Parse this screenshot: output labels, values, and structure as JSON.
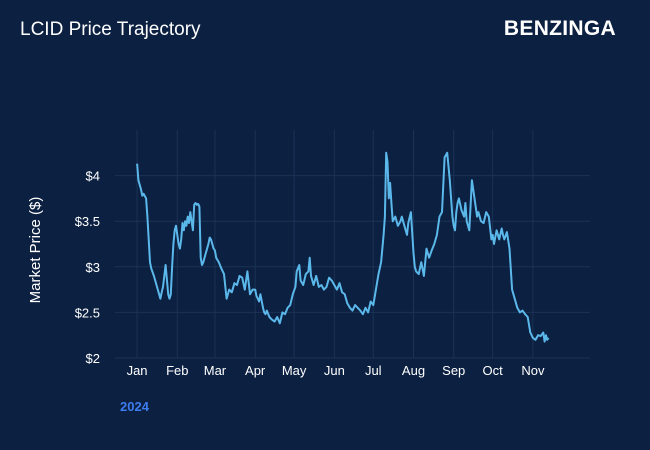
{
  "header": {
    "title": "LCID Price Trajectory",
    "brand": "BENZINGA"
  },
  "colors": {
    "background": "#0c2041",
    "line": "#5bb8ea",
    "grid": "#1c3256",
    "year_label": "#3d7cf0"
  },
  "chart_data": {
    "type": "line",
    "ylabel": "Market Price ($)",
    "year_label": "2024",
    "ylim": [
      2.0,
      4.5
    ],
    "yticks": [
      {
        "value": 2.0,
        "label": "$2"
      },
      {
        "value": 2.5,
        "label": "$2.5"
      },
      {
        "value": 3.0,
        "label": "$3"
      },
      {
        "value": 3.5,
        "label": "$3.5"
      },
      {
        "value": 4.0,
        "label": "$4"
      }
    ],
    "xticks": [
      {
        "label": "Jan",
        "date": "2024-01-01"
      },
      {
        "label": "Feb",
        "date": "2024-02-01"
      },
      {
        "label": "Mar",
        "date": "2024-03-01"
      },
      {
        "label": "Apr",
        "date": "2024-04-01"
      },
      {
        "label": "May",
        "date": "2024-05-01"
      },
      {
        "label": "Jun",
        "date": "2024-06-01"
      },
      {
        "label": "Jul",
        "date": "2024-07-01"
      },
      {
        "label": "Aug",
        "date": "2024-08-01"
      },
      {
        "label": "Sep",
        "date": "2024-09-01"
      },
      {
        "label": "Oct",
        "date": "2024-10-01"
      },
      {
        "label": "Nov",
        "date": "2024-11-01"
      }
    ],
    "x_range": [
      "2023-12-15",
      "2024-12-15"
    ],
    "grid": true,
    "series": [
      {
        "x": [
          "2024-01-01",
          "2024-01-02",
          "2024-01-04",
          "2024-01-05",
          "2024-01-06",
          "2024-01-08",
          "2024-01-09",
          "2024-01-10",
          "2024-01-11",
          "2024-01-12",
          "2024-01-14",
          "2024-01-15",
          "2024-01-17",
          "2024-01-19",
          "2024-01-20",
          "2024-01-21",
          "2024-01-22",
          "2024-01-23",
          "2024-01-25",
          "2024-01-26",
          "2024-01-27",
          "2024-01-28",
          "2024-01-29",
          "2024-01-30",
          "2024-01-31",
          "2024-02-01",
          "2024-02-02",
          "2024-02-03",
          "2024-02-04",
          "2024-02-05",
          "2024-02-06",
          "2024-02-07",
          "2024-02-08",
          "2024-02-09",
          "2024-02-10",
          "2024-02-11",
          "2024-02-12",
          "2024-02-13",
          "2024-02-14",
          "2024-02-15",
          "2024-02-16",
          "2024-02-17",
          "2024-02-18",
          "2024-02-19",
          "2024-02-20",
          "2024-02-21",
          "2024-02-23",
          "2024-02-25",
          "2024-02-26",
          "2024-02-27",
          "2024-02-28",
          "2024-02-29",
          "2024-03-01",
          "2024-03-02",
          "2024-03-04",
          "2024-03-06",
          "2024-03-08",
          "2024-03-10",
          "2024-03-12",
          "2024-03-14",
          "2024-03-16",
          "2024-03-18",
          "2024-03-20",
          "2024-03-22",
          "2024-03-24",
          "2024-03-26",
          "2024-03-28",
          "2024-03-30",
          "2024-04-01",
          "2024-04-02",
          "2024-04-04",
          "2024-04-05",
          "2024-04-07",
          "2024-04-08",
          "2024-04-09",
          "2024-04-10",
          "2024-04-12",
          "2024-04-14",
          "2024-04-16",
          "2024-04-18",
          "2024-04-20",
          "2024-04-22",
          "2024-04-24",
          "2024-04-26",
          "2024-04-28",
          "2024-04-30",
          "2024-05-02",
          "2024-05-03",
          "2024-05-05",
          "2024-05-06",
          "2024-05-08",
          "2024-05-10",
          "2024-05-12",
          "2024-05-13",
          "2024-05-14",
          "2024-05-16",
          "2024-05-18",
          "2024-05-20",
          "2024-05-22",
          "2024-05-24",
          "2024-05-26",
          "2024-05-28",
          "2024-05-30",
          "2024-06-01",
          "2024-06-03",
          "2024-06-05",
          "2024-06-07",
          "2024-06-09",
          "2024-06-11",
          "2024-06-13",
          "2024-06-15",
          "2024-06-17",
          "2024-06-19",
          "2024-06-21",
          "2024-06-23",
          "2024-06-25",
          "2024-06-27",
          "2024-06-29",
          "2024-07-01",
          "2024-07-03",
          "2024-07-05",
          "2024-07-07",
          "2024-07-09",
          "2024-07-10",
          "2024-07-11",
          "2024-07-12",
          "2024-07-13",
          "2024-07-14",
          "2024-07-15",
          "2024-07-16",
          "2024-07-18",
          "2024-07-20",
          "2024-07-22",
          "2024-07-23",
          "2024-07-25",
          "2024-07-27",
          "2024-07-28",
          "2024-07-30",
          "2024-08-01",
          "2024-08-02",
          "2024-08-03",
          "2024-08-05",
          "2024-08-07",
          "2024-08-09",
          "2024-08-11",
          "2024-08-13",
          "2024-08-15",
          "2024-08-17",
          "2024-08-19",
          "2024-08-21",
          "2024-08-23",
          "2024-08-25",
          "2024-08-27",
          "2024-08-28",
          "2024-08-29",
          "2024-08-30",
          "2024-08-31",
          "2024-09-01",
          "2024-09-02",
          "2024-09-03",
          "2024-09-04",
          "2024-09-05",
          "2024-09-07",
          "2024-09-09",
          "2024-09-10",
          "2024-09-11",
          "2024-09-13",
          "2024-09-15",
          "2024-09-16",
          "2024-09-17",
          "2024-09-19",
          "2024-09-20",
          "2024-09-22",
          "2024-09-24",
          "2024-09-26",
          "2024-09-28",
          "2024-09-30",
          "2024-10-01",
          "2024-10-02",
          "2024-10-04",
          "2024-10-06",
          "2024-10-08",
          "2024-10-09",
          "2024-10-10",
          "2024-10-12",
          "2024-10-14",
          "2024-10-16",
          "2024-10-18",
          "2024-10-20",
          "2024-10-22",
          "2024-10-24",
          "2024-10-26",
          "2024-10-28",
          "2024-10-30",
          "2024-11-01",
          "2024-11-03",
          "2024-11-05",
          "2024-11-07",
          "2024-11-09",
          "2024-11-10",
          "2024-11-11",
          "2024-11-12",
          "2024-11-13"
        ],
        "y": [
          4.13,
          3.95,
          3.85,
          3.78,
          3.8,
          3.75,
          3.55,
          3.3,
          3.05,
          2.98,
          2.9,
          2.85,
          2.75,
          2.65,
          2.72,
          2.78,
          2.9,
          3.02,
          2.7,
          2.65,
          2.7,
          3.0,
          3.25,
          3.4,
          3.45,
          3.35,
          3.25,
          3.2,
          3.3,
          3.48,
          3.4,
          3.5,
          3.45,
          3.55,
          3.48,
          3.6,
          3.5,
          3.4,
          3.68,
          3.7,
          3.68,
          3.69,
          3.66,
          3.1,
          3.02,
          3.05,
          3.15,
          3.25,
          3.32,
          3.3,
          3.25,
          3.2,
          3.18,
          3.1,
          3.05,
          2.98,
          2.92,
          2.65,
          2.75,
          2.72,
          2.82,
          2.8,
          2.9,
          2.88,
          2.75,
          2.95,
          2.7,
          2.75,
          2.75,
          2.68,
          2.62,
          2.7,
          2.55,
          2.5,
          2.48,
          2.52,
          2.45,
          2.42,
          2.4,
          2.45,
          2.38,
          2.5,
          2.48,
          2.55,
          2.58,
          2.7,
          2.78,
          2.95,
          3.02,
          2.85,
          2.8,
          2.92,
          2.95,
          3.1,
          2.9,
          2.8,
          2.9,
          2.78,
          2.8,
          2.75,
          2.78,
          2.88,
          2.85,
          2.8,
          2.75,
          2.82,
          2.72,
          2.7,
          2.6,
          2.55,
          2.52,
          2.58,
          2.55,
          2.52,
          2.48,
          2.55,
          2.5,
          2.62,
          2.58,
          2.75,
          2.92,
          3.05,
          3.35,
          3.55,
          4.25,
          4.15,
          3.75,
          3.92,
          3.7,
          3.5,
          3.55,
          3.45,
          3.5,
          3.55,
          3.45,
          3.35,
          3.48,
          3.6,
          3.15,
          3.0,
          2.95,
          2.92,
          3.05,
          2.9,
          3.2,
          3.1,
          3.18,
          3.25,
          3.35,
          3.55,
          3.6,
          4.2,
          4.25,
          4.1,
          3.95,
          3.75,
          3.55,
          3.45,
          3.4,
          3.6,
          3.7,
          3.75,
          3.62,
          3.55,
          3.7,
          3.5,
          3.4,
          3.95,
          3.85,
          3.75,
          3.55,
          3.6,
          3.5,
          3.48,
          3.6,
          3.55,
          3.3,
          3.35,
          3.25,
          3.4,
          3.3,
          3.42,
          3.35,
          3.3,
          3.38,
          3.2,
          2.75,
          2.65,
          2.55,
          2.5,
          2.52,
          2.48,
          2.45,
          2.28,
          2.22,
          2.2,
          2.25,
          2.24,
          2.28,
          2.18,
          2.25,
          2.2,
          2.22
        ]
      }
    ]
  }
}
